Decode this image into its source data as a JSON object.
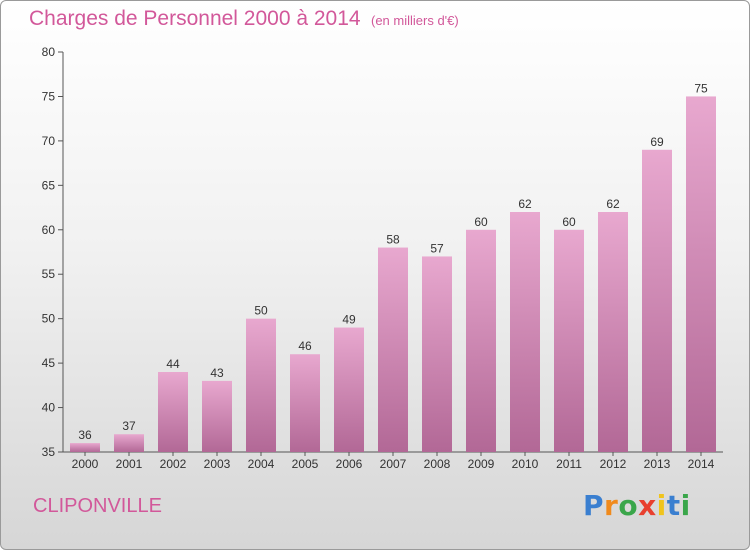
{
  "header": {
    "title": "Charges de Personnel 2000 à 2014",
    "subtitle": "(en milliers d'€)"
  },
  "footer": {
    "city": "CLIPONVILLE",
    "logo_text": "Proxiti"
  },
  "colors": {
    "bar_top": "#e8a8cf",
    "bar_bottom": "#b26896",
    "title": "#d2589a"
  },
  "chart_data": {
    "type": "bar",
    "title": "Charges de Personnel 2000 à 2014",
    "subtitle": "(en milliers d'€)",
    "xlabel": "",
    "ylabel": "",
    "categories": [
      "2000",
      "2001",
      "2002",
      "2003",
      "2004",
      "2005",
      "2006",
      "2007",
      "2008",
      "2009",
      "2010",
      "2011",
      "2012",
      "2013",
      "2014"
    ],
    "values": [
      36,
      37,
      44,
      43,
      50,
      46,
      49,
      58,
      57,
      60,
      62,
      60,
      62,
      69,
      75
    ],
    "ylim": [
      35,
      80
    ],
    "yticks": [
      35,
      40,
      45,
      50,
      55,
      60,
      65,
      70,
      75,
      80
    ],
    "grid": false,
    "data_labels": true
  }
}
